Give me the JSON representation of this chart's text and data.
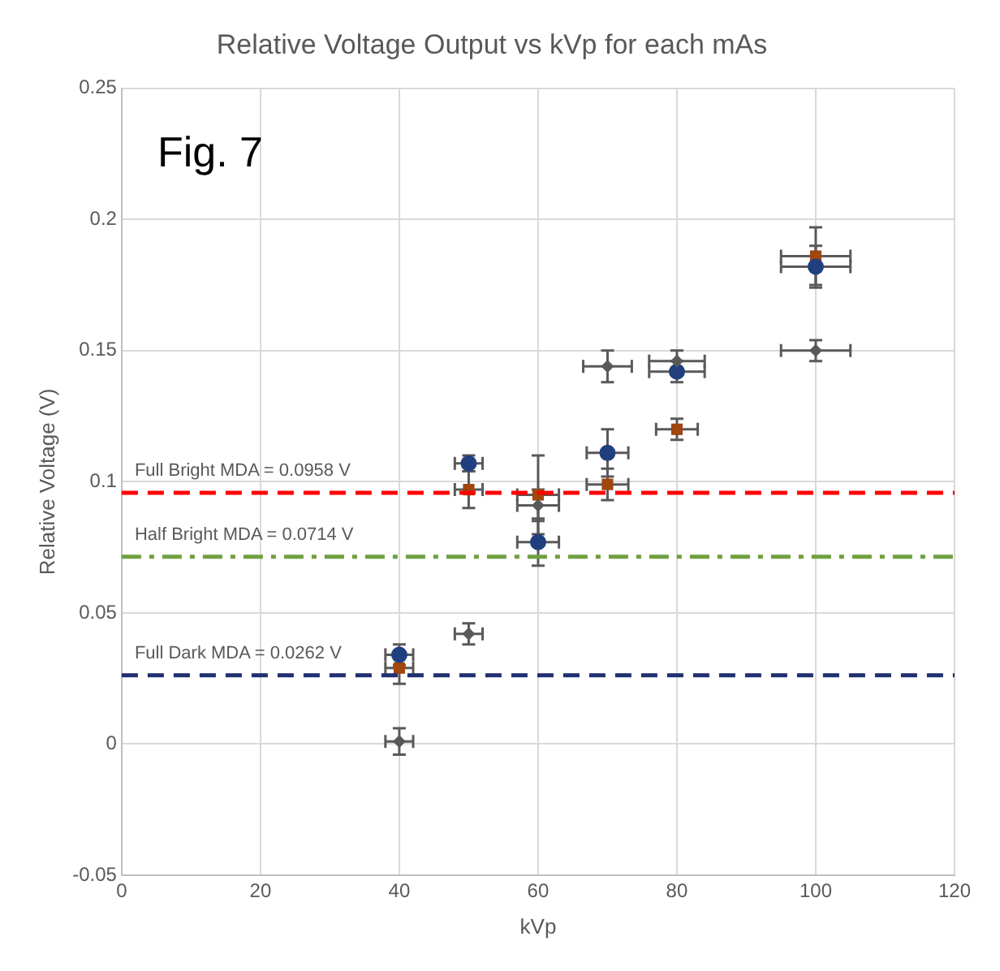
{
  "chart_data": {
    "type": "scatter",
    "title": "Relative Voltage Output vs kVp for each mAs",
    "xlabel": "kVp",
    "ylabel": "Relative Voltage (V)",
    "annotations": [
      "Fig. 7"
    ],
    "xlim": [
      0,
      120
    ],
    "xticks": [
      0,
      20,
      40,
      60,
      80,
      100,
      120
    ],
    "ylim": [
      -0.05,
      0.25
    ],
    "yticks": [
      -0.05,
      0,
      0.05,
      0.1,
      0.15,
      0.2,
      0.25
    ],
    "grid": true,
    "legend": false,
    "series": [
      {
        "color": "#595959",
        "marker": "diamond",
        "x": [
          40,
          50,
          60,
          70,
          80,
          100
        ],
        "values": [
          0.001,
          0.042,
          0.091,
          0.144,
          0.146,
          0.15
        ],
        "errors": [
          0.005,
          0.004,
          0.006,
          0.006,
          0.004,
          0.004
        ],
        "xerrors": [
          2,
          2,
          3,
          3.5,
          4,
          5
        ]
      },
      {
        "color": "#1f3f7f",
        "marker": "circle",
        "x": [
          40,
          50,
          60,
          70,
          80,
          100
        ],
        "values": [
          0.034,
          0.107,
          0.077,
          0.111,
          0.142,
          0.182
        ],
        "errors": [
          0.004,
          0.003,
          0.009,
          0.009,
          0.004,
          0.008
        ],
        "xerrors": [
          2,
          2,
          3,
          3,
          4,
          5
        ]
      },
      {
        "color": "#a0460e",
        "marker": "square",
        "x": [
          40,
          50,
          60,
          70,
          80,
          100
        ],
        "values": [
          0.029,
          0.097,
          0.095,
          0.099,
          0.12,
          0.186
        ],
        "errors": [
          0.006,
          0.007,
          0.015,
          0.006,
          0.004,
          0.011
        ],
        "xerrors": [
          2,
          2,
          3,
          3,
          3,
          5
        ]
      }
    ],
    "ref_lines": [
      {
        "axis": "y",
        "value": 0.0958,
        "label": "Full Bright MDA = 0.0958 V",
        "color": "#ff0000",
        "line_style": "dashed"
      },
      {
        "axis": "y",
        "value": 0.0714,
        "label": "Half Bright MDA = 0.0714 V",
        "color": "#70a040",
        "line_style": "dashdot"
      },
      {
        "axis": "y",
        "value": 0.0262,
        "label": "Full Dark MDA = 0.0262 V",
        "color": "#1f3070",
        "line_style": "dashed"
      }
    ]
  }
}
